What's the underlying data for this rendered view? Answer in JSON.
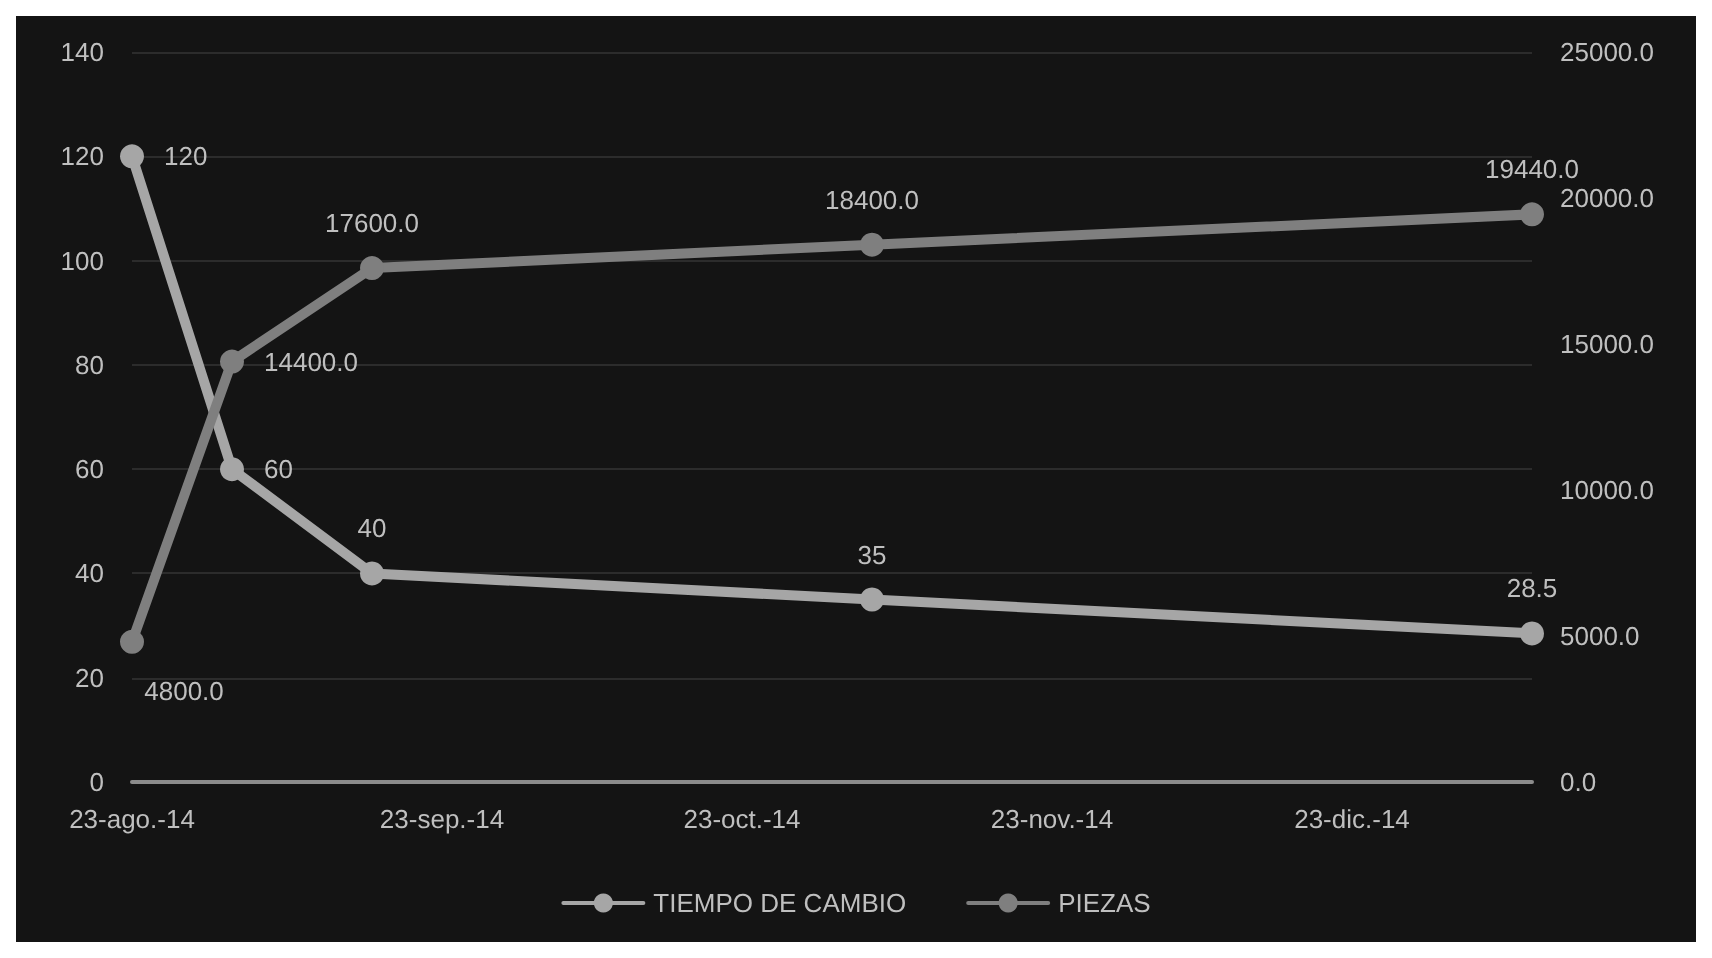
{
  "chart_data": {
    "type": "line",
    "x": [
      "2014-08-23",
      "2014-09-02",
      "2014-09-16",
      "2014-11-05",
      "2015-01-10"
    ],
    "xlim": [
      "2014-08-23",
      "2015-01-10"
    ],
    "xticks": [
      {
        "value": "2014-08-23",
        "label": "23-ago.-14"
      },
      {
        "value": "2014-09-23",
        "label": "23-sep.-14"
      },
      {
        "value": "2014-10-23",
        "label": "23-oct.-14"
      },
      {
        "value": "2014-11-23",
        "label": "23-nov.-14"
      },
      {
        "value": "2014-12-23",
        "label": "23-dic.-14"
      }
    ],
    "ylim": [
      0,
      140
    ],
    "yticks": [
      0,
      20,
      40,
      60,
      80,
      100,
      120,
      140
    ],
    "y2lim": [
      0,
      25000
    ],
    "y2ticks": [
      {
        "value": 0,
        "label": "0.0"
      },
      {
        "value": 5000,
        "label": "5000.0"
      },
      {
        "value": 10000,
        "label": "10000.0"
      },
      {
        "value": 15000,
        "label": "15000.0"
      },
      {
        "value": 20000,
        "label": "20000.0"
      },
      {
        "value": 25000,
        "label": "25000.0"
      }
    ],
    "series": [
      {
        "name": "TIEMPO DE CAMBIO",
        "color": "#a6a6a6",
        "values": [
          120,
          60,
          40,
          35,
          28.5
        ],
        "value_labels": [
          "120",
          "60",
          "40",
          "35",
          "28.5"
        ]
      },
      {
        "name": "PIEZAS",
        "color": "#7f7f7f",
        "axis": "y2",
        "values": [
          4800,
          14400,
          17600,
          18400,
          19440
        ],
        "value_labels": [
          "4800.0",
          "14400.0",
          "17600.0",
          "18400.0",
          "19440.0"
        ]
      }
    ],
    "marker": "circle",
    "line_style": "solid",
    "grid": "y",
    "legend": "bottom"
  }
}
